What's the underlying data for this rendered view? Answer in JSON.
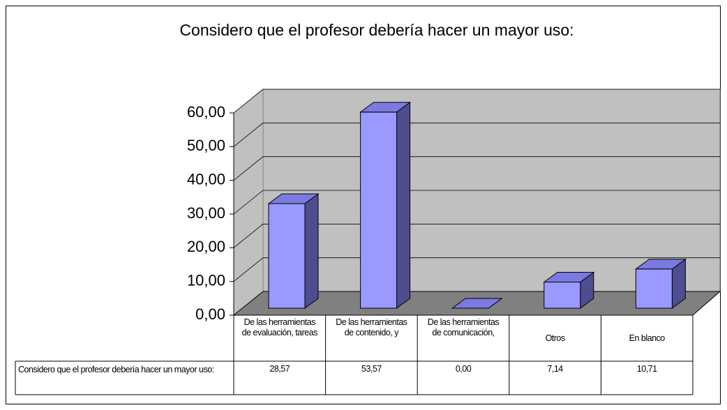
{
  "chart_data": {
    "type": "bar3d",
    "title": "Considero que el profesor debería hacer un mayor uso:",
    "categories": [
      "De las herramientas de evaluación, tareas",
      "De las herramientas de contenido, y",
      "De las herramientas de comunicación,",
      "Otros",
      "En blanco"
    ],
    "series": [
      {
        "name": "Considero que el profesor debería hacer un mayor uso:",
        "color": "#9999ff",
        "values": [
          28.57,
          53.57,
          0,
          7.14,
          10.71
        ],
        "value_labels": [
          "28,57",
          "53,57",
          "0,00",
          "7,14",
          "10,71"
        ]
      }
    ],
    "ylim": [
      0,
      60
    ],
    "yticks": [
      {
        "value": 0,
        "label": "0,00"
      },
      {
        "value": 10,
        "label": "10,00"
      },
      {
        "value": 20,
        "label": "20,00"
      },
      {
        "value": 30,
        "label": "30,00"
      },
      {
        "value": 40,
        "label": "40,00"
      },
      {
        "value": 50,
        "label": "50,00"
      },
      {
        "value": 60,
        "label": "60,00"
      }
    ],
    "grid": true
  }
}
